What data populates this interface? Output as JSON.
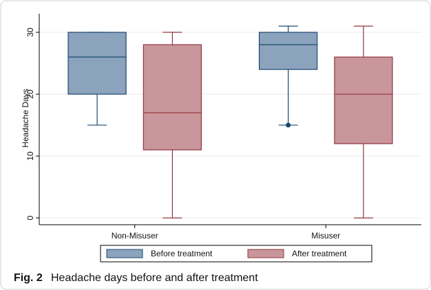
{
  "chart_data": {
    "type": "box",
    "ylabel": "Headache Days",
    "categories": [
      "Non-Misuser",
      "Misuser"
    ],
    "series": [
      {
        "name": "Before treatment",
        "color": "#8ba3bd",
        "edge": "#1a476f",
        "values": [
          {
            "min": 15,
            "q1": 20,
            "median": 26,
            "q3": 30,
            "max": 30
          },
          {
            "min": 15,
            "q1": 24,
            "median": 28,
            "q3": 30,
            "max": 31
          }
        ],
        "outliers": [
          [],
          [
            15
          ]
        ]
      },
      {
        "name": "After treatment",
        "color": "#c9969b",
        "edge": "#90353b",
        "values": [
          {
            "min": 0,
            "q1": 11,
            "median": 17,
            "q3": 28,
            "max": 30
          },
          {
            "min": 0,
            "q1": 12,
            "median": 20,
            "q3": 26,
            "max": 31
          }
        ],
        "outliers": [
          [],
          []
        ]
      }
    ],
    "ylim": [
      -1.1,
      33
    ],
    "yticks": [
      0,
      10,
      20,
      30
    ],
    "grid": true,
    "legend": "bottom"
  },
  "caption": {
    "label": "Fig. 2",
    "text": "Headache days before and after treatment"
  }
}
